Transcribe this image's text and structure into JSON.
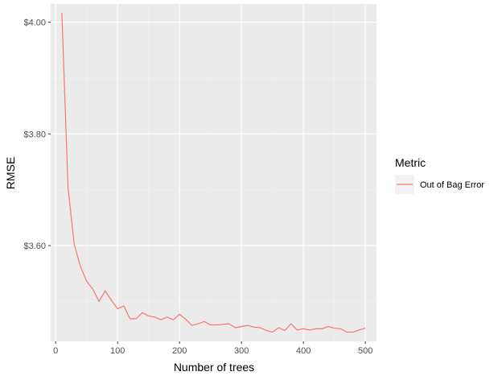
{
  "chart_data": {
    "type": "line",
    "title": "",
    "xlabel": "Number of trees",
    "ylabel": "RMSE",
    "xlim": [
      -8,
      518
    ],
    "ylim": [
      3.4285,
      4.0325
    ],
    "x_ticks": [
      0,
      100,
      200,
      300,
      400,
      500
    ],
    "x_tick_labels": [
      "0",
      "100",
      "200",
      "300",
      "400",
      "500"
    ],
    "y_ticks": [
      3.6,
      3.8,
      4.0
    ],
    "y_tick_labels": [
      "$3.60",
      "$3.80",
      "$4.00"
    ],
    "grid": true,
    "background": "#ebebeb",
    "legend": {
      "title": "Metric",
      "position": "right"
    },
    "series": [
      {
        "name": "Out of Bag Error",
        "color": "#f8766d",
        "x": [
          10,
          20,
          30,
          40,
          50,
          60,
          70,
          80,
          90,
          100,
          110,
          120,
          130,
          140,
          150,
          160,
          170,
          180,
          190,
          200,
          210,
          220,
          230,
          240,
          250,
          260,
          270,
          280,
          290,
          300,
          310,
          320,
          330,
          340,
          350,
          360,
          370,
          380,
          390,
          400,
          410,
          420,
          430,
          440,
          450,
          460,
          470,
          480,
          490,
          500
        ],
        "y": [
          4.017,
          3.704,
          3.602,
          3.563,
          3.536,
          3.522,
          3.5,
          3.519,
          3.502,
          3.487,
          3.492,
          3.469,
          3.469,
          3.48,
          3.474,
          3.472,
          3.467,
          3.472,
          3.467,
          3.477,
          3.468,
          3.457,
          3.46,
          3.464,
          3.458,
          3.458,
          3.459,
          3.46,
          3.453,
          3.455,
          3.457,
          3.454,
          3.453,
          3.448,
          3.445,
          3.453,
          3.448,
          3.46,
          3.449,
          3.451,
          3.449,
          3.451,
          3.451,
          3.455,
          3.452,
          3.451,
          3.445,
          3.445,
          3.449,
          3.452
        ]
      }
    ]
  }
}
